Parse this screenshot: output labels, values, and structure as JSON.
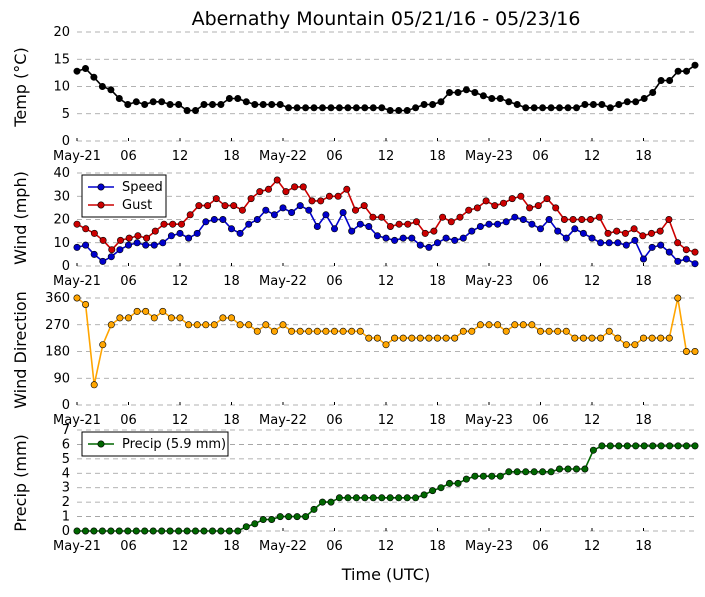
{
  "title": "Abernathy Mountain 05/21/16 - 05/23/16",
  "xlabel": "Time (UTC)",
  "xticks": [
    "May-21",
    "06",
    "12",
    "18",
    "May-22",
    "06",
    "12",
    "18",
    "May-23",
    "06",
    "12",
    "18"
  ],
  "colors": {
    "black": "#000000",
    "blue": "#0000cc",
    "red": "#cc0000",
    "orange": "#ffa500",
    "green": "#006600",
    "grid": "#999999"
  },
  "chart_data": [
    {
      "type": "line",
      "ylabel": "Temp (°C)",
      "ylim": [
        0,
        20
      ],
      "yticks": [
        0,
        5,
        10,
        15,
        20
      ],
      "grid": true,
      "x_unit": "hours since May-21 00 UTC",
      "series": [
        {
          "color": "#000000",
          "values": [
            12.8,
            13.3,
            11.7,
            10.0,
            9.4,
            7.8,
            6.7,
            7.2,
            6.7,
            7.2,
            7.2,
            6.7,
            6.7,
            5.6,
            5.6,
            6.7,
            6.7,
            6.7,
            7.8,
            7.8,
            7.2,
            6.7,
            6.7,
            6.7,
            6.7,
            6.1,
            6.1,
            6.1,
            6.1,
            6.1,
            6.1,
            6.1,
            6.1,
            6.1,
            6.1,
            6.1,
            6.1,
            5.6,
            5.6,
            5.6,
            6.1,
            6.7,
            6.7,
            7.2,
            8.9,
            8.9,
            9.4,
            8.9,
            8.3,
            7.8,
            7.8,
            7.2,
            6.7,
            6.1,
            6.1,
            6.1,
            6.1,
            6.1,
            6.1,
            6.1,
            6.7,
            6.7,
            6.7,
            6.1,
            6.7,
            7.2,
            7.2,
            7.8,
            8.9,
            11.1,
            11.1,
            12.8,
            12.8,
            13.9
          ]
        }
      ]
    },
    {
      "type": "line",
      "ylabel": "Wind (mph)",
      "ylim": [
        0,
        40
      ],
      "yticks": [
        0,
        10,
        20,
        30,
        40
      ],
      "grid": true,
      "legend": "top-left",
      "series": [
        {
          "name": "Speed",
          "color": "#0000cc",
          "values": [
            8,
            9,
            5,
            2,
            4,
            7,
            9,
            10,
            9,
            9,
            10,
            13,
            14,
            12,
            14,
            19,
            20,
            20,
            16,
            14,
            18,
            20,
            24,
            22,
            25,
            23,
            26,
            24,
            17,
            22,
            16,
            23,
            15,
            18,
            17,
            13,
            12,
            11,
            12,
            12,
            9,
            8,
            10,
            12,
            11,
            12,
            15,
            17,
            18,
            18,
            19,
            21,
            20,
            18,
            16,
            20,
            15,
            12,
            16,
            14,
            12,
            10,
            10,
            10,
            9,
            11,
            3,
            8,
            9,
            6,
            2,
            3,
            1
          ]
        },
        {
          "name": "Gust",
          "color": "#cc0000",
          "values": [
            18,
            16,
            14,
            11,
            7,
            11,
            12,
            13,
            12,
            15,
            18,
            18,
            18,
            22,
            26,
            26,
            29,
            26,
            26,
            24,
            29,
            32,
            33,
            37,
            32,
            34,
            34,
            28,
            28,
            30,
            30,
            33,
            24,
            26,
            21,
            21,
            17,
            18,
            18,
            19,
            14,
            15,
            21,
            19,
            21,
            24,
            25,
            28,
            26,
            27,
            29,
            30,
            25,
            26,
            29,
            25,
            20,
            20,
            20,
            20,
            21,
            14,
            15,
            14,
            16,
            13,
            14,
            15,
            20,
            10,
            7,
            6
          ]
        }
      ]
    },
    {
      "type": "scatter",
      "ylabel": "Wind Direction",
      "ylim": [
        0,
        360
      ],
      "yticks": [
        0,
        90,
        180,
        270,
        360
      ],
      "grid": true,
      "series": [
        {
          "color": "#ffa500",
          "values": [
            360,
            338,
            68,
            203,
            270,
            293,
            293,
            315,
            315,
            293,
            315,
            293,
            293,
            270,
            270,
            270,
            270,
            293,
            293,
            270,
            270,
            248,
            270,
            248,
            270,
            248,
            248,
            248,
            248,
            248,
            248,
            248,
            248,
            248,
            225,
            225,
            203,
            225,
            225,
            225,
            225,
            225,
            225,
            225,
            225,
            248,
            248,
            270,
            270,
            270,
            248,
            270,
            270,
            270,
            248,
            248,
            248,
            248,
            225,
            225,
            225,
            225,
            248,
            225,
            203,
            203,
            225,
            225,
            225,
            225,
            360,
            180,
            180
          ]
        }
      ]
    },
    {
      "type": "line",
      "ylabel": "Precip (mm)",
      "ylim": [
        0,
        7
      ],
      "yticks": [
        0,
        1,
        2,
        3,
        4,
        5,
        6,
        7
      ],
      "grid": true,
      "legend": "top-left",
      "series": [
        {
          "name": "Precip (5.9 mm)",
          "color": "#006600",
          "values": [
            0,
            0,
            0,
            0,
            0,
            0,
            0,
            0,
            0,
            0,
            0,
            0,
            0,
            0,
            0,
            0,
            0,
            0,
            0,
            0,
            0.3,
            0.5,
            0.8,
            0.8,
            1.0,
            1.0,
            1.0,
            1.0,
            1.5,
            2.0,
            2.0,
            2.3,
            2.3,
            2.3,
            2.3,
            2.3,
            2.3,
            2.3,
            2.3,
            2.3,
            2.3,
            2.5,
            2.8,
            3.0,
            3.3,
            3.3,
            3.6,
            3.8,
            3.8,
            3.8,
            3.8,
            4.1,
            4.1,
            4.1,
            4.1,
            4.1,
            4.1,
            4.3,
            4.3,
            4.3,
            4.3,
            5.6,
            5.9,
            5.9,
            5.9,
            5.9,
            5.9,
            5.9,
            5.9,
            5.9,
            5.9,
            5.9,
            5.9,
            5.9
          ]
        }
      ]
    }
  ]
}
